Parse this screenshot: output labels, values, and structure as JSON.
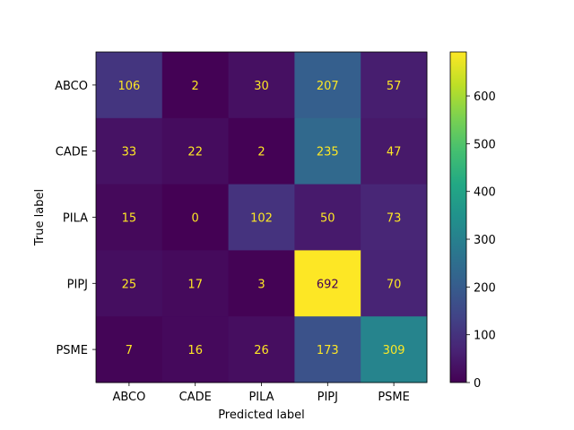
{
  "chart_data": {
    "type": "heatmap",
    "title": "",
    "xlabel": "Predicted label",
    "ylabel": "True label",
    "x_categories": [
      "ABCO",
      "CADE",
      "PILA",
      "PIPJ",
      "PSME"
    ],
    "y_categories": [
      "ABCO",
      "CADE",
      "PILA",
      "PIPJ",
      "PSME"
    ],
    "values": [
      [
        106,
        2,
        30,
        207,
        57
      ],
      [
        33,
        22,
        2,
        235,
        47
      ],
      [
        15,
        0,
        102,
        50,
        73
      ],
      [
        25,
        17,
        3,
        692,
        70
      ],
      [
        7,
        16,
        26,
        173,
        309
      ]
    ],
    "colormap": "viridis",
    "vmin": 0,
    "vmax": 692,
    "colorbar": {
      "ticks": [
        0,
        100,
        200,
        300,
        400,
        500,
        600
      ]
    },
    "grid": false
  }
}
